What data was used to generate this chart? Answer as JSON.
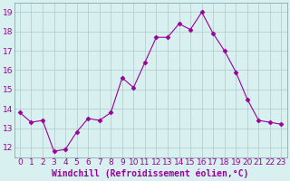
{
  "x": [
    0,
    1,
    2,
    3,
    4,
    5,
    6,
    7,
    8,
    9,
    10,
    11,
    12,
    13,
    14,
    15,
    16,
    17,
    18,
    19,
    20,
    21,
    22,
    23
  ],
  "y": [
    13.8,
    13.3,
    13.4,
    11.8,
    11.9,
    12.8,
    13.5,
    13.4,
    13.8,
    15.6,
    15.1,
    16.4,
    17.7,
    17.7,
    18.4,
    18.1,
    19.0,
    17.9,
    17.0,
    15.9,
    14.5,
    13.4,
    13.3,
    13.2
  ],
  "line_color": "#990099",
  "marker": "D",
  "marker_size": 2.5,
  "bg_color": "#d8f0f0",
  "grid_color": "#b0c8c8",
  "xlabel": "Windchill (Refroidissement éolien,°C)",
  "xlabel_color": "#990099",
  "ylabel_ticks": [
    12,
    13,
    14,
    15,
    16,
    17,
    18,
    19
  ],
  "ylim": [
    11.5,
    19.5
  ],
  "xlim": [
    -0.5,
    23.5
  ],
  "tick_label_color": "#990099",
  "tick_label_size": 6.5,
  "xlabel_fontsize": 7.0,
  "spine_color": "#7a9a9a"
}
